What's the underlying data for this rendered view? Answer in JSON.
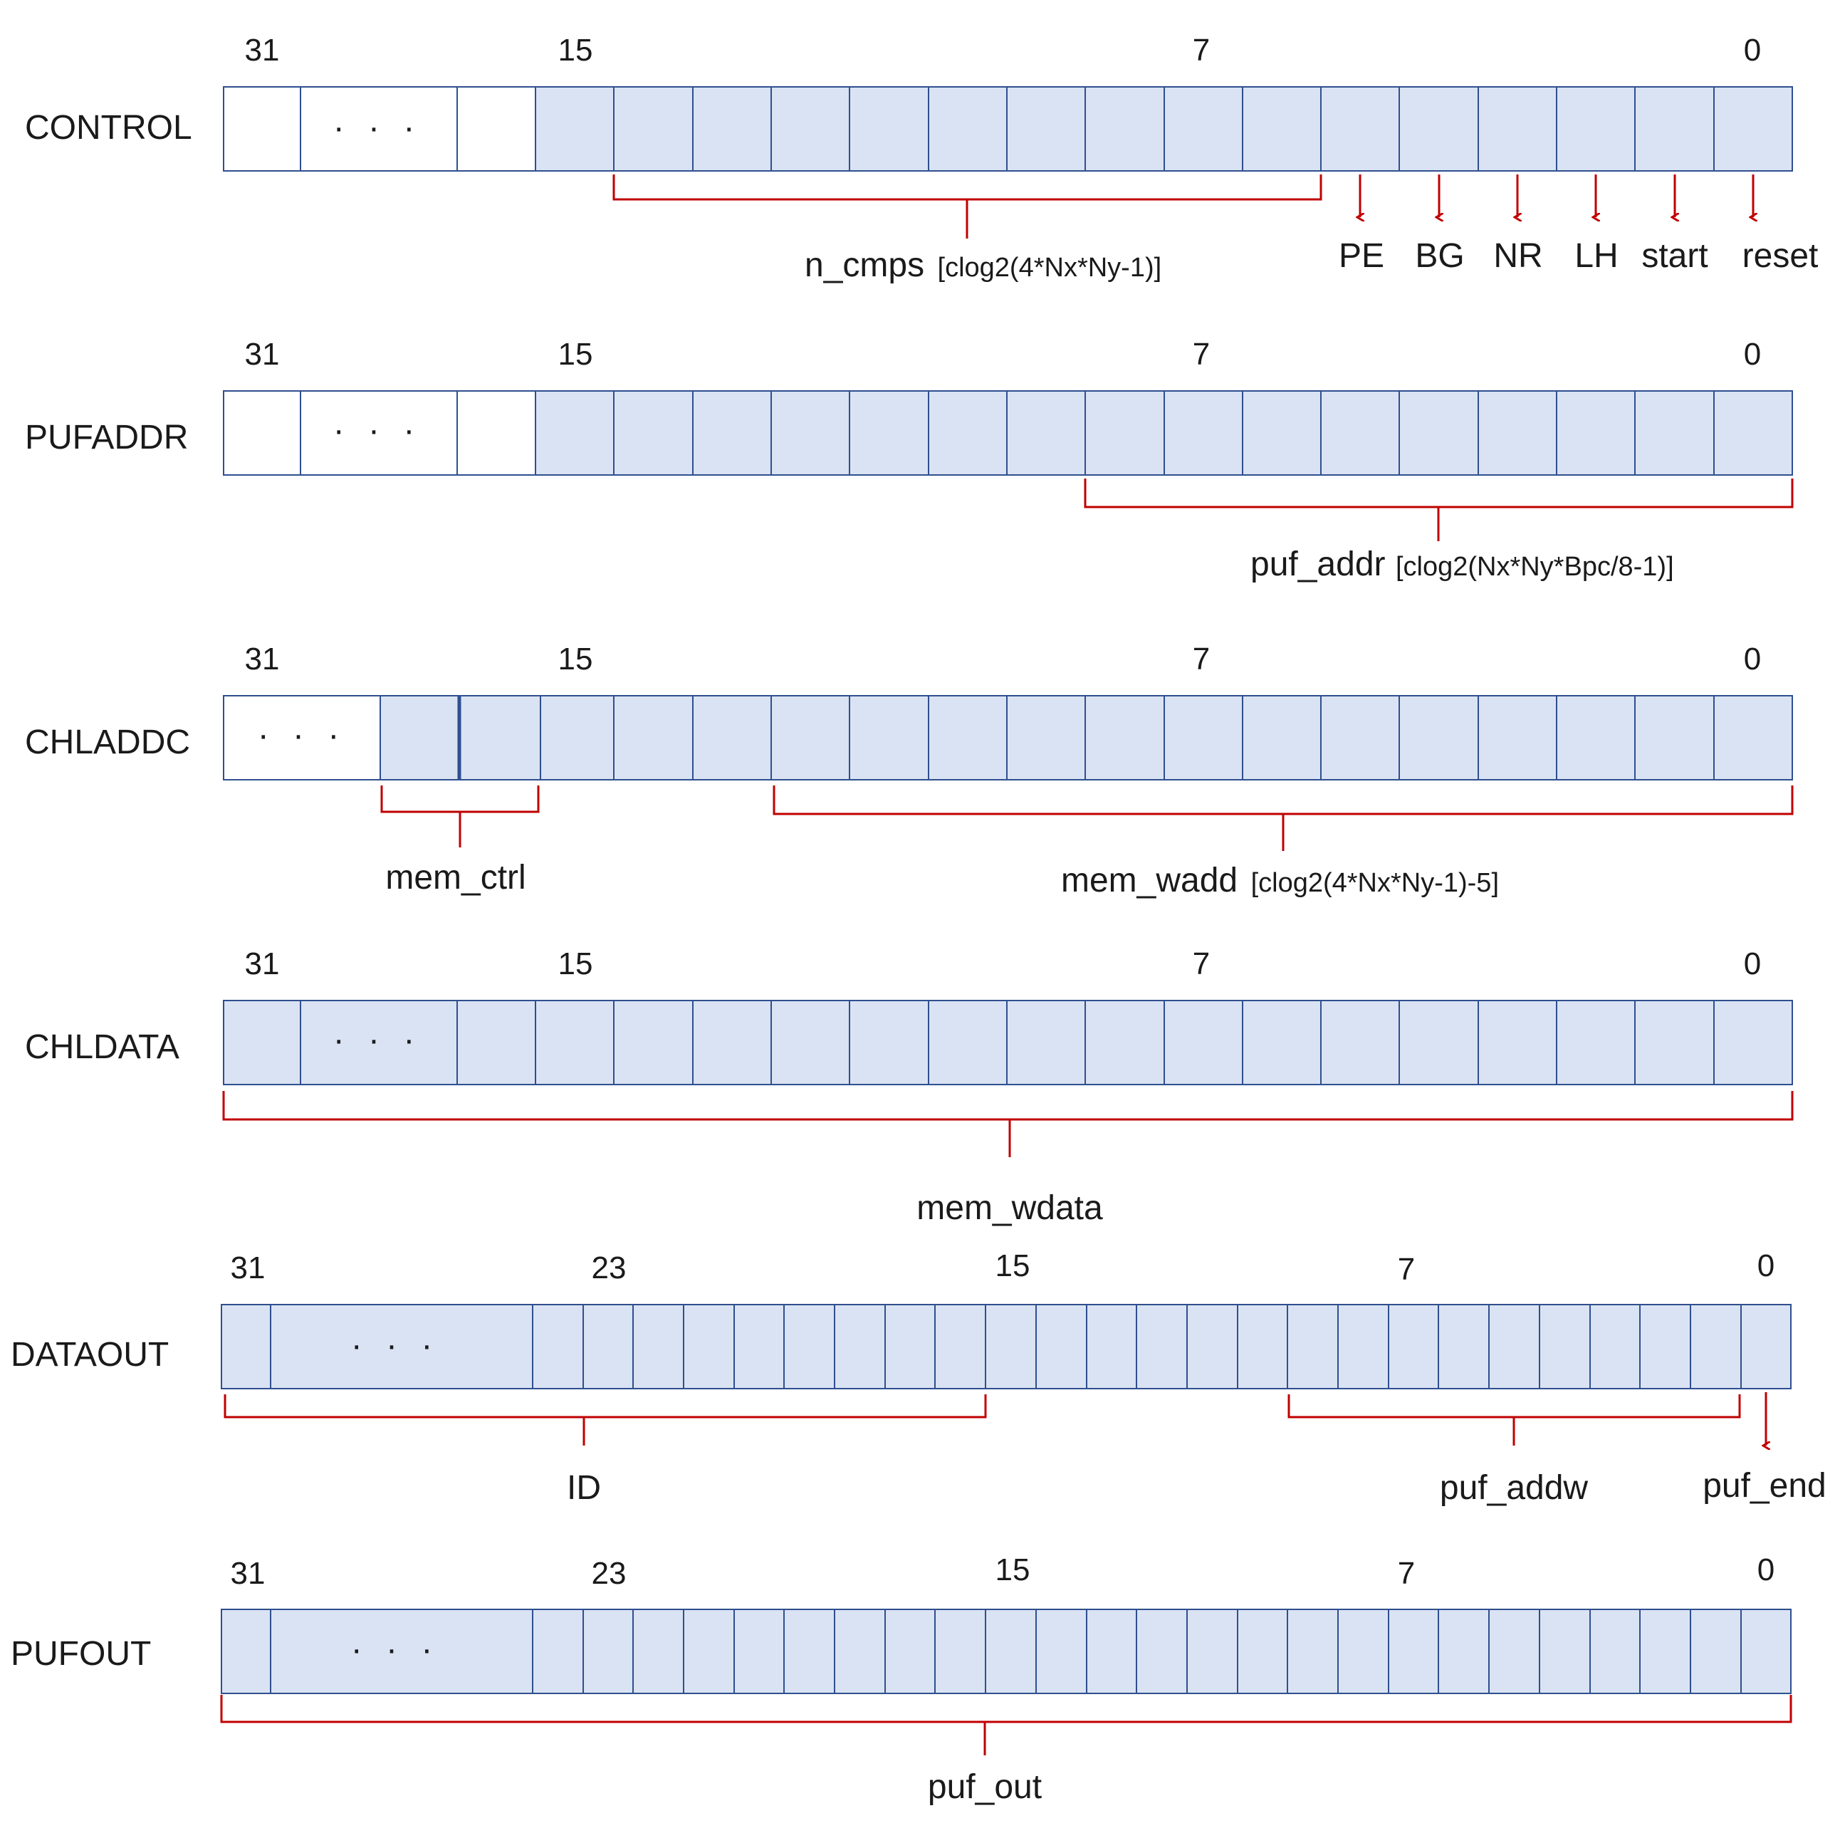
{
  "colors": {
    "cell_fill": "#dae3f3",
    "cell_empty": "#ffffff",
    "cell_border": "#2f4f8f",
    "annotation": "#c00000",
    "text": "#1a1a1a"
  },
  "registers": [
    {
      "name": "CONTROL",
      "bit_labels": [
        "31",
        "15",
        "7",
        "0"
      ],
      "ellipsis": "· · ·",
      "fields": [
        {
          "name": "n_cmps",
          "detail": "[clog2(4*Nx*Ny-1)]"
        }
      ],
      "flags": [
        "PE",
        "BG",
        "NR",
        "LH",
        "start",
        "reset"
      ]
    },
    {
      "name": "PUFADDR",
      "bit_labels": [
        "31",
        "15",
        "7",
        "0"
      ],
      "ellipsis": "· · ·",
      "fields": [
        {
          "name": "puf_addr",
          "detail": "[clog2(Nx*Ny*Bpc/8-1)]"
        }
      ],
      "flags": []
    },
    {
      "name": "CHLADDC",
      "bit_labels": [
        "31",
        "15",
        "7",
        "0"
      ],
      "ellipsis": "· · ·",
      "fields": [
        {
          "name": "mem_ctrl",
          "detail": ""
        },
        {
          "name": "mem_wadd",
          "detail": "[clog2(4*Nx*Ny-1)-5]"
        }
      ],
      "flags": []
    },
    {
      "name": "CHLDATA",
      "bit_labels": [
        "31",
        "15",
        "7",
        "0"
      ],
      "ellipsis": "· · ·",
      "fields": [
        {
          "name": "mem_wdata",
          "detail": ""
        }
      ],
      "flags": []
    },
    {
      "name": "DATAOUT",
      "bit_labels": [
        "31",
        "23",
        "15",
        "7",
        "0"
      ],
      "ellipsis": "· · ·",
      "fields": [
        {
          "name": "ID",
          "detail": ""
        },
        {
          "name": "puf_addw",
          "detail": ""
        }
      ],
      "flags": [
        "puf_end"
      ]
    },
    {
      "name": "PUFOUT",
      "bit_labels": [
        "31",
        "23",
        "15",
        "7",
        "0"
      ],
      "ellipsis": "· · ·",
      "fields": [
        {
          "name": "puf_out",
          "detail": ""
        }
      ],
      "flags": []
    }
  ]
}
